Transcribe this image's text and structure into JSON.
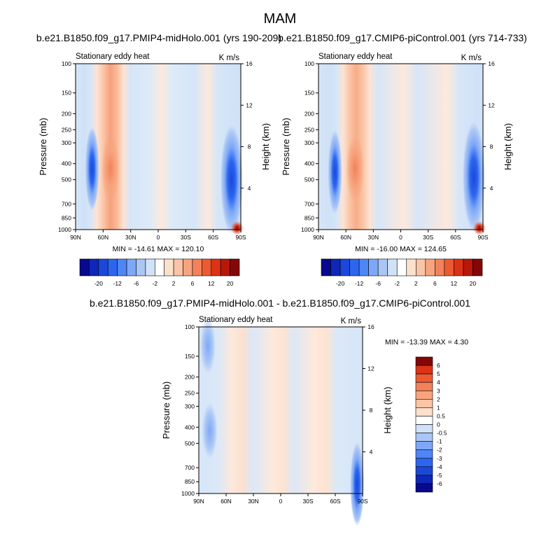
{
  "figure": {
    "season": "MAM",
    "title_top_left": "b.e21.B1850.f09_g17.PMIP4-midHolo.001 (yrs 190-209)",
    "title_top_right": "b.e21.B1850.f09_g17.CMIP6-piControl.001 (yrs 714-733)",
    "title_bottom": "b.e21.B1850.f09_g17.PMIP4-midHolo.001 - b.e21.B1850.f09_g17.CMIP6-piControl.001"
  },
  "chart_data": [
    {
      "id": "midholo",
      "type": "heatmap",
      "variable": "Stationary eddy heat",
      "units": "K m/s",
      "xlabel": "",
      "ylabel": "Pressure (mb)",
      "ylabel_right": "Height (km)",
      "x_ticks": [
        "90N",
        "60N",
        "30N",
        "0",
        "30S",
        "60S",
        "90S"
      ],
      "x_values": [
        90,
        60,
        30,
        0,
        -30,
        -60,
        -90
      ],
      "y_ticks": [
        "100",
        "150",
        "200",
        "250",
        "300",
        "400",
        "500",
        "700",
        "850",
        "1000"
      ],
      "y_values": [
        100,
        150,
        200,
        250,
        300,
        400,
        500,
        700,
        850,
        1000
      ],
      "height_ticks": [
        "4",
        "8",
        "12",
        "16"
      ],
      "height_values": [
        4,
        8,
        12,
        16
      ],
      "ylim": [
        1000,
        100
      ],
      "xlim": [
        90,
        -90
      ],
      "min": -14.61,
      "max": 120.1,
      "stats_text": "MIN = -14.61   MAX = 120.10",
      "colorbar": {
        "orientation": "horizontal",
        "labels": [
          "-20",
          "-12",
          "-6",
          "-2",
          "2",
          "6",
          "12",
          "20"
        ],
        "levels": [
          -20,
          -16,
          -12,
          -8,
          -6,
          -4,
          -2,
          -1,
          1,
          2,
          4,
          6,
          8,
          12,
          16,
          20
        ],
        "colors": [
          "#08088f",
          "#0f27b8",
          "#1b48d8",
          "#2c66f0",
          "#4f86f5",
          "#7ea8f7",
          "#aac6f5",
          "#d0e2f8",
          "#ffffff",
          "#fde0cc",
          "#fac4a6",
          "#f7a47e",
          "#f3825a",
          "#ec5a32",
          "#dc3316",
          "#b81808",
          "#850606"
        ]
      },
      "features": [
        {
          "lat": 52,
          "p": 430,
          "value": 6
        },
        {
          "lat": 72,
          "p": 430,
          "value": -6
        },
        {
          "lat": -80,
          "p": 500,
          "value": -16
        },
        {
          "lat": -86,
          "p": 980,
          "value": 20
        }
      ]
    },
    {
      "id": "picontrol",
      "type": "heatmap",
      "variable": "Stationary eddy heat",
      "units": "K m/s",
      "xlabel": "",
      "ylabel": "Pressure (mb)",
      "ylabel_right": "Height (km)",
      "x_ticks": [
        "90N",
        "60N",
        "30N",
        "0",
        "30S",
        "60S",
        "90S"
      ],
      "x_values": [
        90,
        60,
        30,
        0,
        -30,
        -60,
        -90
      ],
      "y_ticks": [
        "100",
        "150",
        "200",
        "250",
        "300",
        "400",
        "500",
        "700",
        "850",
        "1000"
      ],
      "y_values": [
        100,
        150,
        200,
        250,
        300,
        400,
        500,
        700,
        850,
        1000
      ],
      "height_ticks": [
        "4",
        "8",
        "12",
        "16"
      ],
      "height_values": [
        4,
        8,
        12,
        16
      ],
      "ylim": [
        1000,
        100
      ],
      "xlim": [
        90,
        -90
      ],
      "min": -16.0,
      "max": 124.65,
      "stats_text": "MIN = -16.00   MAX = 124.65",
      "colorbar": {
        "orientation": "horizontal",
        "labels": [
          "-20",
          "-12",
          "-6",
          "-2",
          "2",
          "6",
          "12",
          "20"
        ],
        "levels": [
          -20,
          -16,
          -12,
          -8,
          -6,
          -4,
          -2,
          -1,
          1,
          2,
          4,
          6,
          8,
          12,
          16,
          20
        ],
        "colors": [
          "#08088f",
          "#0f27b8",
          "#1b48d8",
          "#2c66f0",
          "#4f86f5",
          "#7ea8f7",
          "#aac6f5",
          "#d0e2f8",
          "#ffffff",
          "#fde0cc",
          "#fac4a6",
          "#f7a47e",
          "#f3825a",
          "#ec5a32",
          "#dc3316",
          "#b81808",
          "#850606"
        ]
      },
      "features": [
        {
          "lat": 50,
          "p": 430,
          "value": 5
        },
        {
          "lat": 72,
          "p": 450,
          "value": -5
        },
        {
          "lat": -80,
          "p": 480,
          "value": -16
        },
        {
          "lat": -86,
          "p": 980,
          "value": 20
        }
      ]
    },
    {
      "id": "difference",
      "type": "heatmap",
      "variable": "Stationary eddy heat",
      "units": "K m/s",
      "xlabel": "",
      "ylabel": "Pressure (mb)",
      "ylabel_right": "Height (km)",
      "x_ticks": [
        "90N",
        "60N",
        "30N",
        "0",
        "30S",
        "60S",
        "90S"
      ],
      "x_values": [
        90,
        60,
        30,
        0,
        -30,
        -60,
        -90
      ],
      "y_ticks": [
        "100",
        "150",
        "200",
        "250",
        "300",
        "400",
        "500",
        "700",
        "850",
        "1000"
      ],
      "y_values": [
        100,
        150,
        200,
        250,
        300,
        400,
        500,
        700,
        850,
        1000
      ],
      "height_ticks": [
        "4",
        "8",
        "12",
        "16"
      ],
      "height_values": [
        4,
        8,
        12,
        16
      ],
      "ylim": [
        1000,
        100
      ],
      "xlim": [
        90,
        -90
      ],
      "min": -13.39,
      "max": 4.3,
      "stats_text": "MIN = -13.39   MAX =   4.30",
      "colorbar": {
        "orientation": "vertical",
        "labels": [
          "-6",
          "-5",
          "-4",
          "-3",
          "-2",
          "-1",
          "-0.5",
          "0",
          "0.5",
          "1",
          "2",
          "3",
          "4",
          "5",
          "6"
        ],
        "levels": [
          -6,
          -5,
          -4,
          -3,
          -2,
          -1,
          -0.5,
          0,
          0.5,
          1,
          2,
          3,
          4,
          5,
          6
        ],
        "colors": [
          "#08088f",
          "#0f27b8",
          "#1b48d8",
          "#2c66f0",
          "#4f86f5",
          "#7ea8f7",
          "#aac6f5",
          "#d0e2f8",
          "#ffffff",
          "#fde0cc",
          "#fac4a6",
          "#f7a47e",
          "#f3825a",
          "#ec5a32",
          "#dc3316",
          "#850606"
        ]
      },
      "features": [
        {
          "lat": 80,
          "p": 130,
          "value": -1
        },
        {
          "lat": 78,
          "p": 420,
          "value": -1
        },
        {
          "lat": -84,
          "p": 880,
          "value": -6
        }
      ]
    }
  ]
}
